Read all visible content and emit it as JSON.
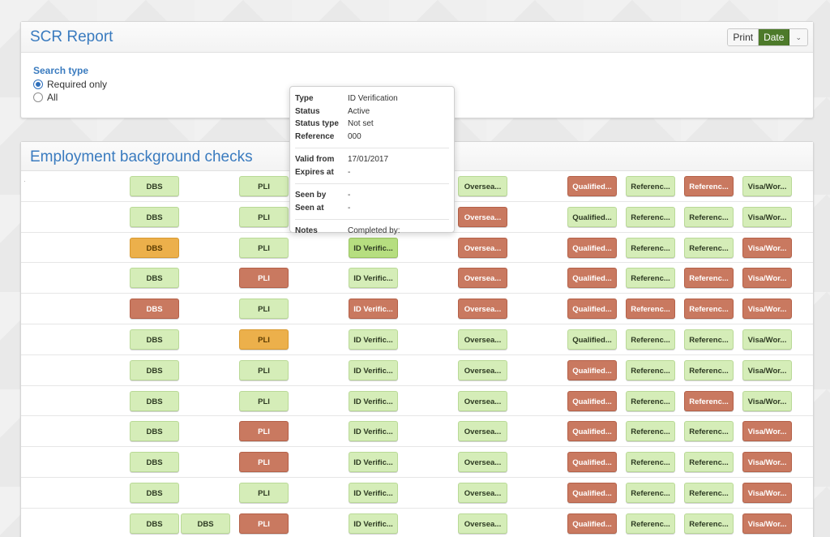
{
  "report": {
    "title": "SCR Report",
    "buttons": {
      "print": "Print",
      "date": "Date",
      "caret": "⌄"
    },
    "search": {
      "label": "Search type",
      "options": [
        {
          "label": "Required only",
          "selected": true
        },
        {
          "label": "All",
          "selected": false
        }
      ]
    }
  },
  "checks": {
    "title": "Employment background checks",
    "row_marker": "·",
    "rows": [
      [
        [
          "DBS",
          "green"
        ],
        [
          "",
          "none"
        ],
        [
          "PLI",
          "green"
        ],
        [
          "",
          "none"
        ],
        [
          "Oversea...",
          "green"
        ],
        [
          "Qualified...",
          "red"
        ],
        [
          "Referenc...",
          "green"
        ],
        [
          "Referenc...",
          "red"
        ],
        [
          "Visa/Wor...",
          "green"
        ]
      ],
      [
        [
          "DBS",
          "green"
        ],
        [
          "",
          "none"
        ],
        [
          "PLI",
          "green"
        ],
        [
          "",
          "none"
        ],
        [
          "Oversea...",
          "red"
        ],
        [
          "Qualified...",
          "green"
        ],
        [
          "Referenc...",
          "green"
        ],
        [
          "Referenc...",
          "green"
        ],
        [
          "Visa/Wor...",
          "green"
        ]
      ],
      [
        [
          "DBS",
          "orange"
        ],
        [
          "",
          "none"
        ],
        [
          "PLI",
          "green"
        ],
        [
          "ID Verific...",
          "bright"
        ],
        [
          "Oversea...",
          "red"
        ],
        [
          "Qualified...",
          "red"
        ],
        [
          "Referenc...",
          "green"
        ],
        [
          "Referenc...",
          "green"
        ],
        [
          "Visa/Wor...",
          "red"
        ]
      ],
      [
        [
          "DBS",
          "green"
        ],
        [
          "",
          "none"
        ],
        [
          "PLI",
          "red"
        ],
        [
          "ID Verific...",
          "green"
        ],
        [
          "Oversea...",
          "red"
        ],
        [
          "Qualified...",
          "red"
        ],
        [
          "Referenc...",
          "green"
        ],
        [
          "Referenc...",
          "red"
        ],
        [
          "Visa/Wor...",
          "red"
        ]
      ],
      [
        [
          "DBS",
          "red"
        ],
        [
          "",
          "none"
        ],
        [
          "PLI",
          "green"
        ],
        [
          "ID Verific...",
          "red"
        ],
        [
          "Oversea...",
          "red"
        ],
        [
          "Qualified...",
          "red"
        ],
        [
          "Referenc...",
          "red"
        ],
        [
          "Referenc...",
          "red"
        ],
        [
          "Visa/Wor...",
          "red"
        ]
      ],
      [
        [
          "DBS",
          "green"
        ],
        [
          "",
          "none"
        ],
        [
          "PLI",
          "orange"
        ],
        [
          "ID Verific...",
          "green"
        ],
        [
          "Oversea...",
          "green"
        ],
        [
          "Qualified...",
          "green"
        ],
        [
          "Referenc...",
          "green"
        ],
        [
          "Referenc...",
          "green"
        ],
        [
          "Visa/Wor...",
          "green"
        ]
      ],
      [
        [
          "DBS",
          "green"
        ],
        [
          "",
          "none"
        ],
        [
          "PLI",
          "green"
        ],
        [
          "ID Verific...",
          "green"
        ],
        [
          "Oversea...",
          "green"
        ],
        [
          "Qualified...",
          "red"
        ],
        [
          "Referenc...",
          "green"
        ],
        [
          "Referenc...",
          "green"
        ],
        [
          "Visa/Wor...",
          "green"
        ]
      ],
      [
        [
          "DBS",
          "green"
        ],
        [
          "",
          "none"
        ],
        [
          "PLI",
          "green"
        ],
        [
          "ID Verific...",
          "green"
        ],
        [
          "Oversea...",
          "green"
        ],
        [
          "Qualified...",
          "red"
        ],
        [
          "Referenc...",
          "green"
        ],
        [
          "Referenc...",
          "red"
        ],
        [
          "Visa/Wor...",
          "green"
        ]
      ],
      [
        [
          "DBS",
          "green"
        ],
        [
          "",
          "none"
        ],
        [
          "PLI",
          "red"
        ],
        [
          "ID Verific...",
          "green"
        ],
        [
          "Oversea...",
          "green"
        ],
        [
          "Qualified...",
          "red"
        ],
        [
          "Referenc...",
          "green"
        ],
        [
          "Referenc...",
          "green"
        ],
        [
          "Visa/Wor...",
          "red"
        ]
      ],
      [
        [
          "DBS",
          "green"
        ],
        [
          "",
          "none"
        ],
        [
          "PLI",
          "red"
        ],
        [
          "ID Verific...",
          "green"
        ],
        [
          "Oversea...",
          "green"
        ],
        [
          "Qualified...",
          "red"
        ],
        [
          "Referenc...",
          "green"
        ],
        [
          "Referenc...",
          "green"
        ],
        [
          "Visa/Wor...",
          "red"
        ]
      ],
      [
        [
          "DBS",
          "green"
        ],
        [
          "",
          "none"
        ],
        [
          "PLI",
          "green"
        ],
        [
          "ID Verific...",
          "green"
        ],
        [
          "Oversea...",
          "green"
        ],
        [
          "Qualified...",
          "red"
        ],
        [
          "Referenc...",
          "green"
        ],
        [
          "Referenc...",
          "green"
        ],
        [
          "Visa/Wor...",
          "red"
        ]
      ],
      [
        [
          "DBS",
          "green"
        ],
        [
          "DBS",
          "green"
        ],
        [
          "PLI",
          "red"
        ],
        [
          "ID Verific...",
          "green"
        ],
        [
          "Oversea...",
          "green"
        ],
        [
          "Qualified...",
          "red"
        ],
        [
          "Referenc...",
          "green"
        ],
        [
          "Referenc...",
          "green"
        ],
        [
          "Visa/Wor...",
          "red"
        ]
      ]
    ]
  },
  "tooltip": {
    "groups": [
      [
        {
          "key": "Type",
          "value": "ID Verification"
        },
        {
          "key": "Status",
          "value": "Active"
        },
        {
          "key": "Status type",
          "value": "Not set"
        },
        {
          "key": "Reference",
          "value": "000"
        }
      ],
      [
        {
          "key": "Valid from",
          "value": "17/01/2017"
        },
        {
          "key": "Expires at",
          "value": "-"
        }
      ],
      [
        {
          "key": "Seen by",
          "value": "-"
        },
        {
          "key": "Seen at",
          "value": "-"
        }
      ],
      [
        {
          "key": "Notes",
          "value": "Completed by:"
        }
      ]
    ]
  },
  "colors": {
    "accent": "#3a7bbf",
    "date_button": "#4d7a2a",
    "status_green": "#d5edb8",
    "status_red": "#c97960",
    "status_orange": "#ecb04b",
    "status_highlight": "#b6de80"
  }
}
